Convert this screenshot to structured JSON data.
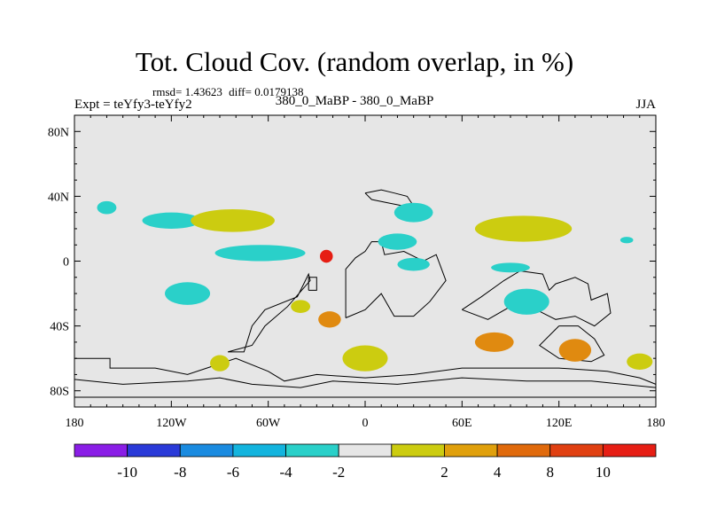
{
  "header": {
    "title": "Tot. Cloud Cov. (random overlap, in %)",
    "rmsd": "rmsd= 1.43623",
    "diff": "diff= 0.0179138",
    "experiment": "Expt = teYfy3-teYfy2",
    "comparison": "380_0_MaBP - 380_0_MaBP",
    "season": "JJA"
  },
  "colors": {
    "ocean": "#e6e6e6",
    "cyan": "#2ad0c9",
    "yellow_green": "#cccc10",
    "blue": "#1a8be0",
    "red": "#e61e14",
    "orange": "#e08a10"
  },
  "chart_data": {
    "type": "heatmap",
    "title": "Tot. Cloud Cov. (random overlap, in %)",
    "xlabel": "",
    "ylabel": "",
    "xlim": [
      -180,
      180
    ],
    "ylim": [
      -90,
      90
    ],
    "xticks": [
      {
        "value": -180,
        "label": "180"
      },
      {
        "value": -120,
        "label": "120W"
      },
      {
        "value": -60,
        "label": "60W"
      },
      {
        "value": 0,
        "label": "0"
      },
      {
        "value": 60,
        "label": "60E"
      },
      {
        "value": 120,
        "label": "120E"
      },
      {
        "value": 180,
        "label": "180"
      }
    ],
    "yticks": [
      {
        "value": 80,
        "label": "80N"
      },
      {
        "value": 40,
        "label": "40N"
      },
      {
        "value": 0,
        "label": "0"
      },
      {
        "value": -40,
        "label": "40S"
      },
      {
        "value": -80,
        "label": "80S"
      }
    ],
    "colorbar": {
      "levels": [
        -12,
        -10,
        -8,
        -6,
        -4,
        -2,
        2,
        4,
        6,
        8,
        10,
        12
      ],
      "labels": [
        "-10",
        "-8",
        "-6",
        "-4",
        "-2",
        "2",
        "4",
        "8",
        "10"
      ],
      "colors": [
        "#8a1ee6",
        "#2a3ad8",
        "#1a8be0",
        "#13b4de",
        "#2ad0c9",
        "#e6e6e6",
        "#cccc10",
        "#e0a00c",
        "#e06a0c",
        "#e04012",
        "#e61e14"
      ]
    },
    "regions": [
      {
        "lon": -160,
        "lat": 33,
        "rx": 6,
        "ry": 4,
        "value": -3,
        "color": "cyan"
      },
      {
        "lon": -120,
        "lat": 25,
        "rx": 18,
        "ry": 5,
        "value": -3,
        "color": "cyan"
      },
      {
        "lon": -82,
        "lat": 25,
        "rx": 26,
        "ry": 7,
        "value": 3,
        "color": "yellow_green"
      },
      {
        "lon": -65,
        "lat": 5,
        "rx": 28,
        "ry": 5,
        "value": -3,
        "color": "cyan"
      },
      {
        "lon": -110,
        "lat": -20,
        "rx": 14,
        "ry": 7,
        "value": -3,
        "color": "cyan"
      },
      {
        "lon": -24,
        "lat": 3,
        "rx": 4,
        "ry": 4,
        "value": 10,
        "color": "red"
      },
      {
        "lon": 20,
        "lat": 12,
        "rx": 12,
        "ry": 5,
        "value": -3,
        "color": "cyan"
      },
      {
        "lon": 30,
        "lat": -2,
        "rx": 10,
        "ry": 4,
        "value": -3,
        "color": "cyan"
      },
      {
        "lon": 98,
        "lat": 20,
        "rx": 30,
        "ry": 8,
        "value": 3,
        "color": "yellow_green"
      },
      {
        "lon": 90,
        "lat": -4,
        "rx": 12,
        "ry": 3,
        "value": -3,
        "color": "cyan"
      },
      {
        "lon": 162,
        "lat": 13,
        "rx": 4,
        "ry": 2,
        "value": -3,
        "color": "cyan"
      },
      {
        "lon": -40,
        "lat": -28,
        "rx": 6,
        "ry": 4,
        "value": 3,
        "color": "yellow_green"
      },
      {
        "lon": -22,
        "lat": -36,
        "rx": 7,
        "ry": 5,
        "value": 5,
        "color": "orange"
      },
      {
        "lon": 0,
        "lat": -60,
        "rx": 14,
        "ry": 8,
        "value": 3,
        "color": "yellow_green"
      },
      {
        "lon": 80,
        "lat": -50,
        "rx": 12,
        "ry": 6,
        "value": 5,
        "color": "orange"
      },
      {
        "lon": 130,
        "lat": -55,
        "rx": 10,
        "ry": 7,
        "value": 5,
        "color": "orange"
      },
      {
        "lon": 170,
        "lat": -62,
        "rx": 8,
        "ry": 5,
        "value": 3,
        "color": "yellow_green"
      },
      {
        "lon": 30,
        "lat": 30,
        "rx": 12,
        "ry": 6,
        "value": -3,
        "color": "cyan"
      },
      {
        "lon": 100,
        "lat": -25,
        "rx": 14,
        "ry": 8,
        "value": -3,
        "color": "cyan"
      },
      {
        "lon": -90,
        "lat": -63,
        "rx": 6,
        "ry": 5,
        "value": 3,
        "color": "yellow_green"
      }
    ]
  }
}
